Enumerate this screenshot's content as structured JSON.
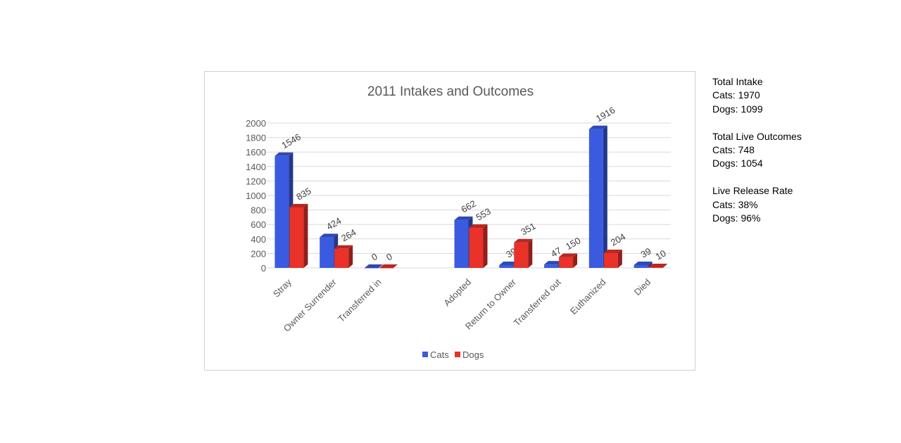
{
  "chart_data": {
    "type": "bar",
    "title": "2011 Intakes and Outcomes",
    "categories": [
      "Stray",
      "Owner Surrender",
      "Transferred in",
      "",
      "Adopted",
      "Return to Owner",
      "Transferred out",
      "Euthanized",
      "Died"
    ],
    "series": [
      {
        "name": "Cats",
        "values": [
          1546,
          424,
          0,
          null,
          662,
          39,
          47,
          1916,
          39
        ],
        "color": "#3a5be0"
      },
      {
        "name": "Dogs",
        "values": [
          835,
          264,
          0,
          null,
          553,
          351,
          150,
          204,
          10
        ],
        "color": "#e8322a"
      }
    ],
    "y_ticks": [
      "0",
      "200",
      "400",
      "600",
      "800",
      "1000",
      "1200",
      "1400",
      "1600",
      "1800",
      "2000"
    ],
    "ylim": [
      0,
      2000
    ],
    "xlabel": "",
    "ylabel": "",
    "grid": true,
    "legend_position": "bottom",
    "style": "3d-column"
  },
  "notes": {
    "total_intake": {
      "heading": "Total Intake",
      "cats": "Cats: 1970",
      "dogs": "Dogs: 1099"
    },
    "total_live_outcomes": {
      "heading": "Total Live Outcomes",
      "cats": "Cats: 748",
      "dogs": "Dogs: 1054"
    },
    "live_release_rate": {
      "heading": "Live Release Rate",
      "cats": "Cats: 38%",
      "dogs": "Dogs: 96%"
    }
  }
}
